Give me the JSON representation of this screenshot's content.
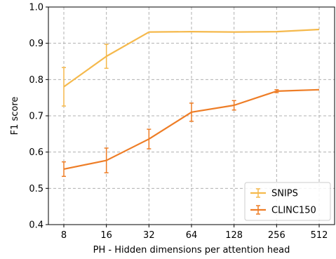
{
  "chart_data": {
    "type": "line",
    "title": "",
    "xlabel": "PH - Hidden dimensions per attention head",
    "ylabel": "F1 score",
    "x_scale": "log2",
    "categories": [
      "8",
      "16",
      "32",
      "64",
      "128",
      "256",
      "512"
    ],
    "x": [
      8,
      16,
      32,
      64,
      128,
      256,
      512
    ],
    "ylim": [
      0.4,
      1.0
    ],
    "yticks": [
      "0.4",
      "0.5",
      "0.6",
      "0.7",
      "0.8",
      "0.9",
      "1.0"
    ],
    "ytick_values": [
      0.4,
      0.5,
      0.6,
      0.7,
      0.8,
      0.9,
      1.0
    ],
    "grid": true,
    "legend_position": "bottom-right",
    "series": [
      {
        "name": "SNIPS",
        "color": "#f5b94c",
        "values": [
          0.78,
          0.864,
          0.931,
          0.932,
          0.931,
          0.932,
          0.938
        ],
        "error": [
          0.053,
          0.033,
          0.0,
          0.0,
          0.0,
          0.0,
          0.0
        ]
      },
      {
        "name": "CLINC150",
        "color": "#ee7d26",
        "values": [
          0.553,
          0.577,
          0.636,
          0.71,
          0.729,
          0.768,
          0.772
        ],
        "error": [
          0.02,
          0.034,
          0.027,
          0.025,
          0.013,
          0.004,
          0.0
        ]
      }
    ]
  }
}
